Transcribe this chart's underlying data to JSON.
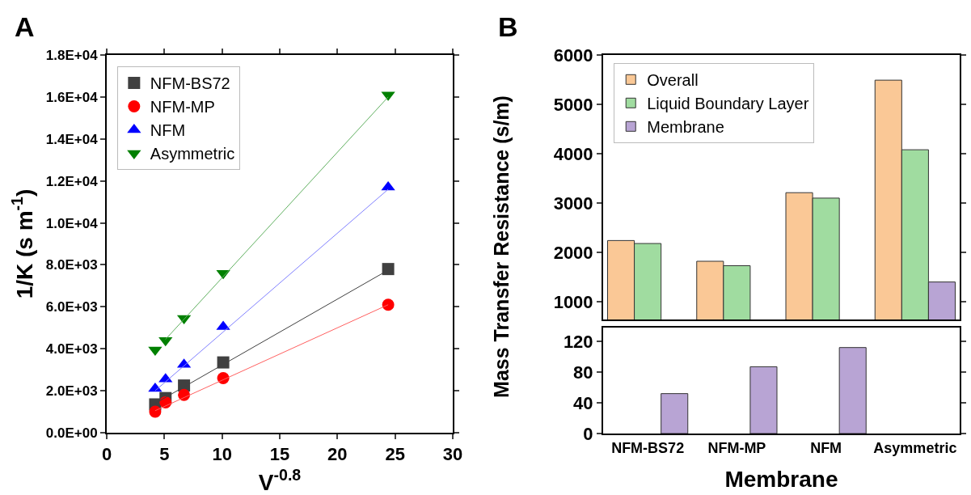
{
  "chart_data": [
    {
      "type": "scatter",
      "annotations": [
        "A"
      ],
      "xlabel": "V$^{-0.8}$",
      "ylabel": "1/K (s m$^{-1}$)",
      "xlim": [
        0,
        30
      ],
      "xticks": [
        0,
        5,
        10,
        15,
        20,
        25,
        30
      ],
      "ylim": [
        0,
        18000
      ],
      "yticks": [
        {
          "value": 0,
          "label": "0.0E+00"
        },
        {
          "value": 2000,
          "label": "2.0E+03"
        },
        {
          "value": 4000,
          "label": "4.0E+03"
        },
        {
          "value": 6000,
          "label": "6.0E+03"
        },
        {
          "value": 8000,
          "label": "8.0E+03"
        },
        {
          "value": 10000,
          "label": "1.0E+04"
        },
        {
          "value": 12000,
          "label": "1.2E+04"
        },
        {
          "value": 14000,
          "label": "1.4E+04"
        },
        {
          "value": 16000,
          "label": "1.6E+04"
        },
        {
          "value": 18000,
          "label": "1.8E+04"
        }
      ],
      "grid": false,
      "legend": "top left",
      "x": [
        4.2,
        5.1,
        6.7,
        10.1,
        24.4
      ],
      "series": [
        {
          "name": "NFM-BS72",
          "color": "#404040",
          "marker": "square",
          "values": [
            1350,
            1650,
            2250,
            3350,
            7800
          ]
        },
        {
          "name": "NFM-MP",
          "color": "#ff0000",
          "marker": "circle",
          "values": [
            1000,
            1450,
            1800,
            2600,
            6100
          ]
        },
        {
          "name": "NFM",
          "color": "#0000ff",
          "marker": "triangle",
          "values": [
            2100,
            2550,
            3250,
            5050,
            11700
          ]
        },
        {
          "name": "Asymmetric",
          "color": "#008000",
          "marker": "triangle-down",
          "values": [
            3950,
            4400,
            5450,
            7600,
            16100
          ]
        },
        {
          "type": "line",
          "color": "#404040",
          "marker": "none",
          "x": [
            4.2,
            24.4
          ],
          "values": [
            1400,
            7750
          ]
        },
        {
          "type": "line",
          "color": "#ff6060",
          "marker": "none",
          "x": [
            4.2,
            24.4
          ],
          "values": [
            1050,
            6100
          ]
        },
        {
          "type": "line",
          "color": "#8080ff",
          "marker": "none",
          "x": [
            4.2,
            24.4
          ],
          "values": [
            2000,
            11600
          ]
        },
        {
          "type": "line",
          "color": "#60b060",
          "marker": "none",
          "x": [
            5.1,
            24.4
          ],
          "values": [
            4450,
            16000
          ]
        }
      ]
    },
    {
      "type": "bar",
      "annotations": [
        "B"
      ],
      "ylabel": "Mass Transfer Resistance (s/m)",
      "categories": [
        null,
        null,
        null,
        null
      ],
      "ylim": [
        640,
        6000
      ],
      "yticks": [
        1000,
        2000,
        3000,
        4000,
        5000,
        6000
      ],
      "grid": false,
      "legend": "top left",
      "tick_labels": "y",
      "series": [
        {
          "name": "Overall",
          "color": "#fac896",
          "values": [
            2240,
            1820,
            3210,
            5490
          ]
        },
        {
          "name": "Liquid Boundary Layer",
          "color": "#a0dca0",
          "values": [
            2180,
            1730,
            3100,
            4080
          ]
        },
        {
          "name": "Membrane",
          "color": "#b8a4d4",
          "values": [
            null,
            null,
            null,
            1400
          ]
        }
      ]
    },
    {
      "type": "bar",
      "xlabel": "Membrane",
      "categories": [
        "NFM-BS72",
        "NFM-MP",
        "NFM",
        "Asymmetric"
      ],
      "ylim": [
        0,
        138
      ],
      "yticks": [
        0,
        40,
        80,
        120
      ],
      "grid": false,
      "legend": false,
      "series": [
        {
          "color": "#fac896",
          "values": [
            null,
            null,
            null,
            null
          ]
        },
        {
          "color": "#a0dca0",
          "values": [
            null,
            null,
            null,
            null
          ]
        },
        {
          "color": "#b8a4d4",
          "values": [
            52,
            87,
            112,
            null
          ]
        }
      ]
    }
  ]
}
